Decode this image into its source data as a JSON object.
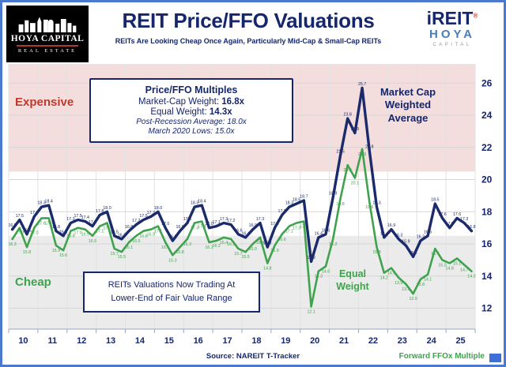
{
  "header": {
    "logo_name": "HOYA CAPITAL",
    "logo_subtitle": "REAL ESTATE",
    "title": "REIT Price/FFO Valuations",
    "subtitle": "REITs Are Looking Cheap Once Again, Particularly Mid-Cap & Small-Cap REITs",
    "brand": {
      "name": "iREIT",
      "reg": "®",
      "hoya": "HOYA",
      "capital": "CAPITAL"
    }
  },
  "annotations": {
    "expensive": "Expensive",
    "cheap": "Cheap",
    "info_box": {
      "title": "Price/FFO Multiples",
      "mcw_label": "Market-Cap Weight: ",
      "mcw_value": "16.8x",
      "ew_label": "Equal Weight: ",
      "ew_value": "14.3x",
      "avg_line": "Post-Recession Average: 18.0x",
      "lows_line": "March 2020 Lows: 15.0x"
    },
    "note_box": [
      "REITs Valuations Now Trading At",
      "Lower-End of Fair Value Range"
    ],
    "mcw_lines": [
      "Market Cap",
      "Weighted",
      "Average"
    ],
    "ew_lines": [
      "Equal",
      "Weight"
    ]
  },
  "footer": {
    "source": "Source: NAREIT T-Tracker",
    "axis_note": "Forward FFOx Multiple"
  },
  "chart_data": {
    "type": "line",
    "title": "REIT Price/FFO Valuations",
    "ylabel": "Forward FFOx Multiple",
    "x_start": 2010,
    "x_end": 2026,
    "x_tick_labels": [
      "10",
      "11",
      "12",
      "13",
      "14",
      "15",
      "16",
      "17",
      "18",
      "19",
      "20",
      "21",
      "22",
      "23",
      "24",
      "25"
    ],
    "y_ticks": [
      12,
      14,
      16,
      18,
      20,
      22,
      24,
      26
    ],
    "ylim": [
      10.7,
      26.8
    ],
    "axis_color": "#16266d",
    "points_per_year": 4,
    "grid": true,
    "legend_position": "in-plot-text-labels",
    "zones": {
      "expensive_above": 20.5,
      "cheap_below": 16.5,
      "expensive_color": "#f3dddd",
      "cheap_color": "#ebebeb"
    },
    "series": [
      {
        "name": "Equal Weight",
        "color": "#3fa34d",
        "width": 2.6,
        "label_dy": 8,
        "values": [
          16.3,
          17.0,
          15.8,
          17.0,
          17.6,
          17.6,
          15.9,
          15.6,
          16.8,
          17.0,
          16.9,
          16.5,
          17.1,
          17.3,
          15.7,
          15.5,
          16.1,
          16.5,
          16.8,
          16.9,
          17.1,
          16.1,
          15.3,
          15.8,
          16.3,
          17.3,
          17.4,
          16.1,
          16.2,
          16.4,
          16.3,
          15.7,
          15.5,
          16.0,
          16.4,
          14.8,
          15.9,
          16.6,
          17.1,
          17.3,
          17.4,
          12.1,
          14.3,
          14.6,
          16.3,
          18.8,
          20.9,
          20.1,
          21.9,
          18.6,
          15.8,
          14.2,
          14.5,
          13.9,
          13.5,
          12.9,
          13.8,
          14.1,
          15.7,
          15.0,
          14.8,
          15.1,
          14.7,
          14.3
        ]
      },
      {
        "name": "Market Cap Weighted Average",
        "color": "#1b2a6b",
        "width": 3.4,
        "label_dy": -3.5,
        "values": [
          16.9,
          17.5,
          16.6,
          17.7,
          18.3,
          18.4,
          16.8,
          16.5,
          17.3,
          17.5,
          17.4,
          17.1,
          17.8,
          18.0,
          16.5,
          16.3,
          16.8,
          17.2,
          17.5,
          17.7,
          18.0,
          17.0,
          16.2,
          16.8,
          17.3,
          18.3,
          18.4,
          17.0,
          17.1,
          17.3,
          17.2,
          16.6,
          16.4,
          16.9,
          17.3,
          15.8,
          17.0,
          17.8,
          18.3,
          18.5,
          18.7,
          14.9,
          16.4,
          16.6,
          18.9,
          21.5,
          23.8,
          22.9,
          25.7,
          21.8,
          18.3,
          16.4,
          16.9,
          16.3,
          15.9,
          15.2,
          16.2,
          16.5,
          18.5,
          17.6,
          17.0,
          17.6,
          17.3,
          16.8
        ]
      }
    ],
    "key_values": {
      "market_cap_weight_current": 16.8,
      "equal_weight_current": 14.3,
      "post_recession_average": 18.0,
      "march_2020_low": 15.0,
      "market_cap_peak": 25.7
    }
  }
}
